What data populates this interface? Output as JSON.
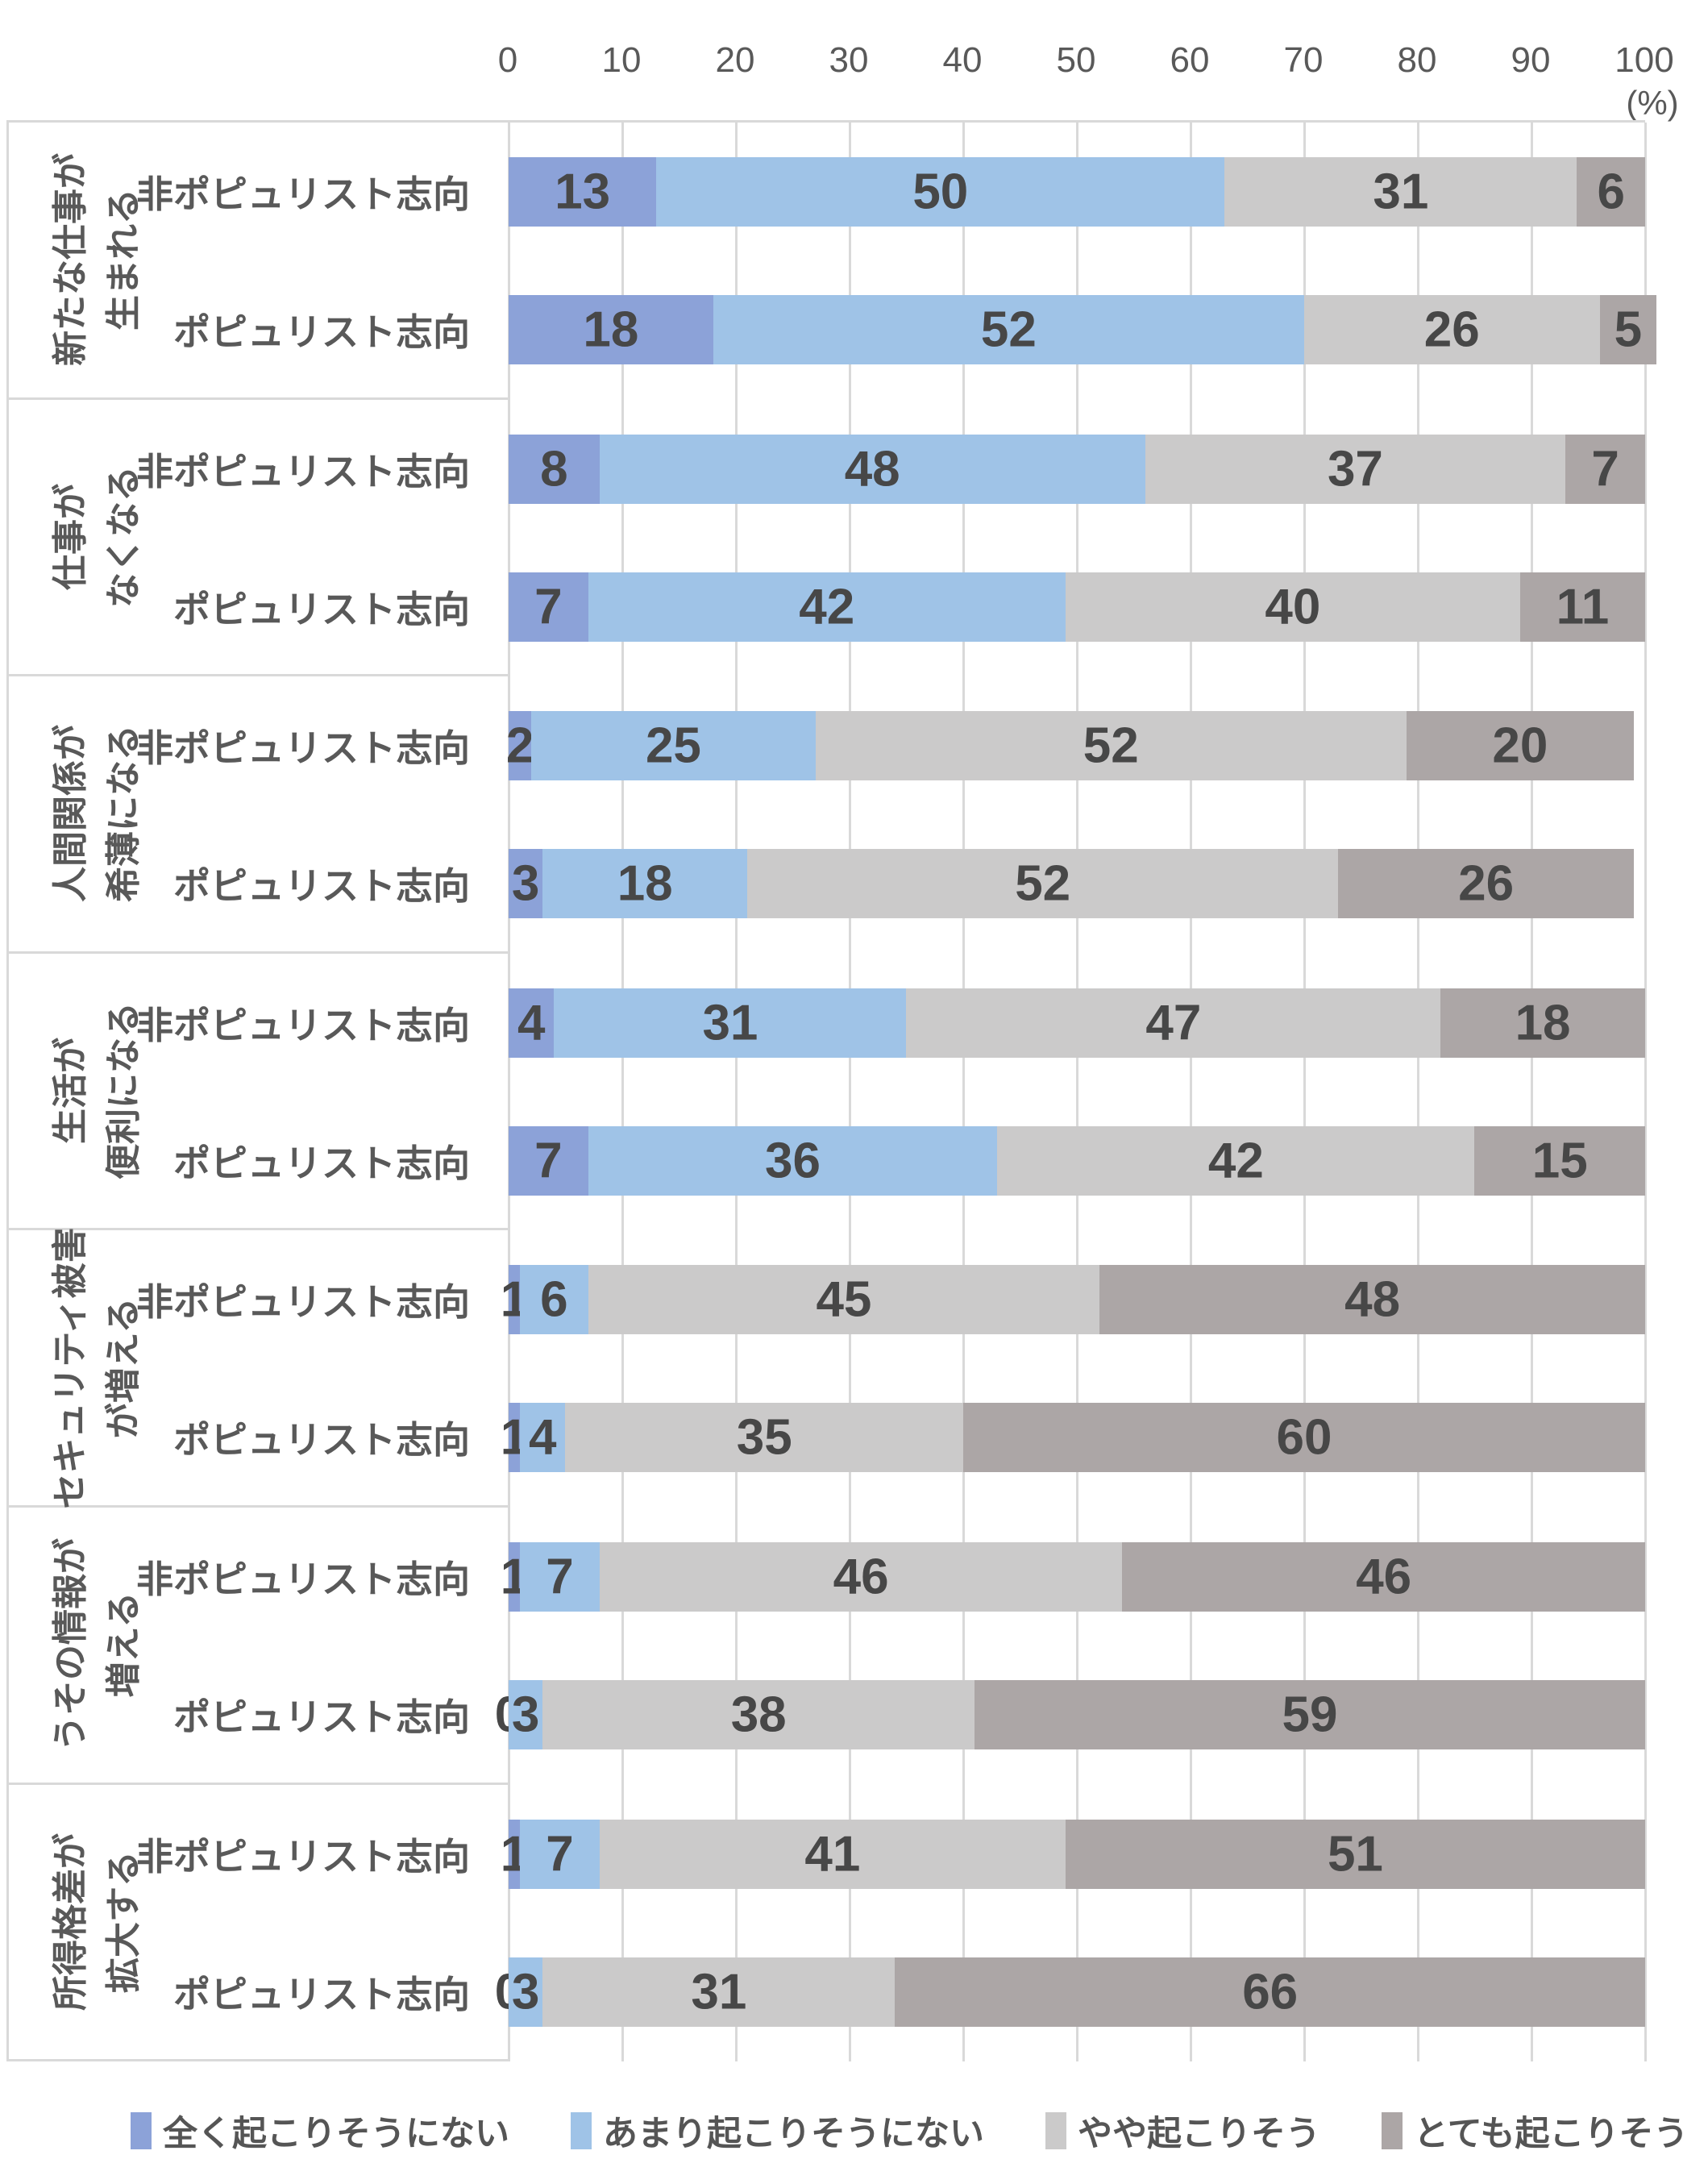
{
  "chart_data": {
    "type": "bar",
    "orientation": "horizontal",
    "stacked": true,
    "unit_label": "(%)",
    "x_ticks": [
      0,
      10,
      20,
      30,
      40,
      50,
      60,
      70,
      80,
      90,
      100
    ],
    "xlim": [
      0,
      100
    ],
    "grid": true,
    "legend_position": "bottom",
    "colors": {
      "gridline": "#d9d9d9",
      "tick_text": "#595959",
      "label_text": "#595959",
      "value_text": "#474747"
    },
    "series": [
      {
        "name": "全く起こりそうにない",
        "color": "#8ca2d8"
      },
      {
        "name": "あまり起こりそうにない",
        "color": "#9fc3e7"
      },
      {
        "name": "やや起こりそう",
        "color": "#cbcaca"
      },
      {
        "name": "とても起こりそう",
        "color": "#aca6a6"
      }
    ],
    "groups": [
      {
        "category_lines": [
          "新たな仕事が",
          "生まれる"
        ],
        "rows": [
          {
            "label": "非ポピュリスト志向",
            "values": [
              13,
              50,
              31,
              6
            ]
          },
          {
            "label": "ポピュリスト志向",
            "values": [
              18,
              52,
              26,
              5
            ]
          }
        ]
      },
      {
        "category_lines": [
          "仕事が",
          "なくなる"
        ],
        "rows": [
          {
            "label": "非ポピュリスト志向",
            "values": [
              8,
              48,
              37,
              7
            ]
          },
          {
            "label": "ポピュリスト志向",
            "values": [
              7,
              42,
              40,
              11
            ]
          }
        ]
      },
      {
        "category_lines": [
          "人間関係が",
          "希薄になる"
        ],
        "rows": [
          {
            "label": "非ポピュリスト志向",
            "values": [
              2,
              25,
              52,
              20
            ]
          },
          {
            "label": "ポピュリスト志向",
            "values": [
              3,
              18,
              52,
              26
            ]
          }
        ]
      },
      {
        "category_lines": [
          "生活が",
          "便利になる"
        ],
        "rows": [
          {
            "label": "非ポピュリスト志向",
            "values": [
              4,
              31,
              47,
              18
            ]
          },
          {
            "label": "ポピュリスト志向",
            "values": [
              7,
              36,
              42,
              15
            ]
          }
        ]
      },
      {
        "category_lines": [
          "セキュリティ被害",
          "が増える"
        ],
        "rows": [
          {
            "label": "非ポピュリスト志向",
            "values": [
              1,
              6,
              45,
              48
            ]
          },
          {
            "label": "ポピュリスト志向",
            "values": [
              1,
              4,
              35,
              60
            ]
          }
        ]
      },
      {
        "category_lines": [
          "うその情報が",
          "増える"
        ],
        "rows": [
          {
            "label": "非ポピュリスト志向",
            "values": [
              1,
              7,
              46,
              46
            ]
          },
          {
            "label": "ポピュリスト志向",
            "values": [
              0,
              3,
              38,
              59
            ]
          }
        ]
      },
      {
        "category_lines": [
          "所得格差が",
          "拡大する"
        ],
        "rows": [
          {
            "label": "非ポピュリスト志向",
            "values": [
              1,
              7,
              41,
              51
            ]
          },
          {
            "label": "ポピュリスト志向",
            "values": [
              0,
              3,
              31,
              66
            ]
          }
        ]
      }
    ]
  }
}
